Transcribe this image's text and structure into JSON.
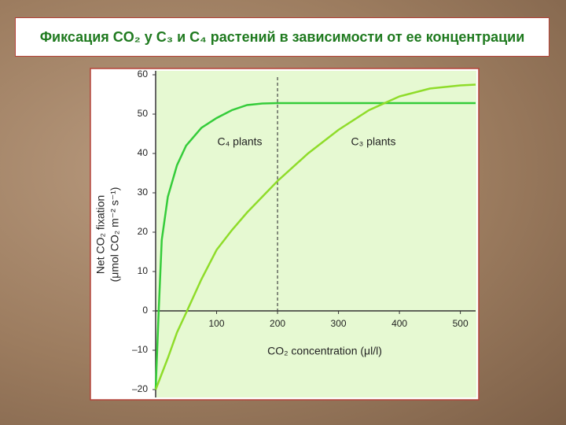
{
  "chart_data": {
    "type": "line",
    "title": "Фиксация CO₂ у C₃ и C₄ растений в зависимости от ее концентрации",
    "xlabel": "CO₂ concentration (μl/l)",
    "ylabel": [
      "Net CO₂ fixation",
      "(μmol CO₂ m⁻² s⁻¹)"
    ],
    "x": [
      0,
      5,
      10,
      20,
      35,
      50,
      75,
      100,
      125,
      150,
      175,
      200,
      250,
      300,
      350,
      400,
      450,
      500,
      525
    ],
    "series": [
      {
        "name": "C₄ plants",
        "color": "#35cc3a",
        "values": [
          -20,
          0,
          18,
          29,
          37,
          42,
          46.5,
          49,
          51,
          52.3,
          52.7,
          52.8,
          52.8,
          52.8,
          52.8,
          52.8,
          52.8,
          52.8,
          52.8
        ]
      },
      {
        "name": "C₃ plants",
        "color": "#8fdc2a",
        "values": [
          -20,
          -18,
          -16,
          -12,
          -5.5,
          -0.5,
          8,
          15.5,
          20.5,
          25,
          29,
          33,
          40,
          46,
          51,
          54.5,
          56.5,
          57.3,
          57.5
        ]
      }
    ],
    "vline": 200,
    "xlim": [
      0,
      525
    ],
    "ylim": [
      -22,
      61
    ],
    "xticks": [
      100,
      200,
      300,
      400,
      500
    ],
    "yticks": [
      {
        "value": -20,
        "label": "–20"
      },
      {
        "value": -10,
        "label": "–10"
      },
      0,
      10,
      20,
      30,
      40,
      50,
      60
    ],
    "grid": false
  }
}
